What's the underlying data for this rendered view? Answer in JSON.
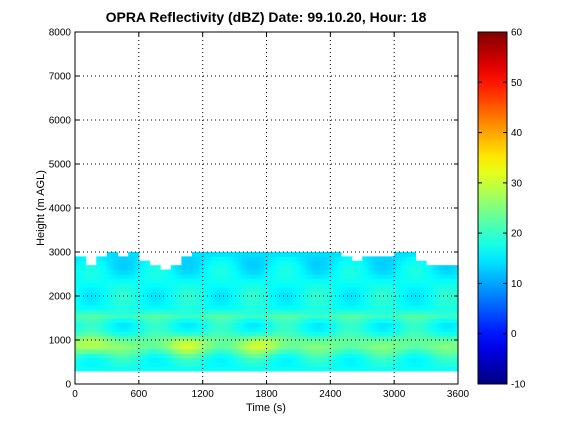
{
  "chart_data": [
    {
      "type": "heatmap",
      "title": "OPRA Reflectivity (dBZ)  Date: 99.10.20, Hour: 18",
      "xlabel": "Time (s)",
      "ylabel": "Height (m AGL)",
      "xlim": [
        0,
        3600
      ],
      "ylim": [
        0,
        8000
      ],
      "x_ticks": [
        0,
        600,
        1200,
        1800,
        2400,
        3000,
        3600
      ],
      "x_tick_labels": [
        "0",
        "600",
        "1200",
        "1800",
        "2400",
        "3000",
        "3600"
      ],
      "y_ticks": [
        0,
        1000,
        2000,
        3000,
        4000,
        5000,
        6000,
        7000,
        8000
      ],
      "y_tick_labels": [
        "0",
        "1000",
        "2000",
        "3000",
        "4000",
        "5000",
        "6000",
        "7000",
        "8000"
      ],
      "grid": "dotted",
      "colormap": "jet",
      "data_summary": {
        "echo_base_height": 300,
        "echo_top_height_approx": 3000,
        "dbz_range_in_echo": [
          12,
          32
        ],
        "bright_band_heights": [
          800,
          1100,
          1600
        ],
        "core_maxima_times": [
          150,
          1050,
          1750
        ],
        "core_max_dbz_approx": 31
      },
      "echo_top_profile": {
        "times": [
          0,
          100,
          200,
          300,
          400,
          500,
          600,
          700,
          800,
          900,
          1000,
          1100,
          1200,
          1300,
          1400,
          1500,
          1600,
          1700,
          1800,
          1900,
          2000,
          2100,
          2200,
          2300,
          2400,
          2500,
          2600,
          2700,
          2800,
          2900,
          3000,
          3100,
          3200,
          3300,
          3400,
          3500,
          3600
        ],
        "heights": [
          2900,
          2700,
          2900,
          3000,
          2900,
          3000,
          2800,
          2700,
          2600,
          2700,
          2900,
          3000,
          3000,
          3000,
          3000,
          3000,
          3000,
          3000,
          3000,
          3000,
          3000,
          3000,
          3000,
          3000,
          3000,
          2900,
          2800,
          2900,
          2900,
          2900,
          3000,
          3000,
          2800,
          2700,
          2700,
          2700,
          2700
        ]
      }
    },
    {
      "type": "colorbar",
      "colormap": "jet",
      "ylim": [
        -10,
        60
      ],
      "ticks": [
        -10,
        0,
        10,
        20,
        30,
        40,
        50,
        60
      ],
      "tick_labels": [
        "-10",
        "0",
        "10",
        "20",
        "30",
        "40",
        "50",
        "60"
      ]
    }
  ]
}
